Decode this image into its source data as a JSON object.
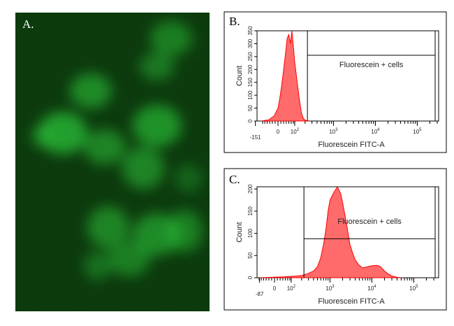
{
  "figure": {
    "panel_a_label": "A.",
    "panel_b_label": "B.",
    "panel_c_label": "C."
  },
  "microscopy": {
    "background_color": "#0f2a10",
    "fluorescence_color": "#33cc44"
  },
  "chart_data": [
    {
      "panel": "B",
      "type": "area",
      "xlabel": "Fluorescein FITC-A",
      "ylabel": "Count",
      "x_scale": "biexponential",
      "xlim": [
        -151,
        262144
      ],
      "ylim": [
        0,
        350
      ],
      "x_tick_labels": [
        {
          "value": -151,
          "label": "-151"
        },
        {
          "value": 0,
          "label": "0"
        },
        {
          "value": 100,
          "label": "10",
          "exp": "2"
        },
        {
          "value": 1000,
          "label": "10",
          "exp": "3"
        },
        {
          "value": 10000,
          "label": "10",
          "exp": "4"
        },
        {
          "value": 100000,
          "label": "10",
          "exp": "5"
        }
      ],
      "y_ticks": [
        0,
        50,
        100,
        150,
        200,
        250,
        300,
        350
      ],
      "gate": {
        "label": "Fluorescein + cells",
        "x_min": 230,
        "count_level": 255
      },
      "fill_color": "#ff6b6b",
      "line_color": "#ff0000",
      "x": [
        -100,
        -50,
        -20,
        0,
        10,
        20,
        30,
        40,
        50,
        60,
        70,
        80,
        90,
        100,
        120,
        140,
        160,
        180,
        200,
        250
      ],
      "values": [
        0,
        5,
        20,
        50,
        90,
        140,
        200,
        260,
        320,
        335,
        300,
        350,
        290,
        230,
        150,
        80,
        30,
        10,
        3,
        0
      ]
    },
    {
      "panel": "C",
      "type": "area",
      "xlabel": "Fluorescein FITC-A",
      "ylabel": "Count",
      "x_scale": "biexponential",
      "xlim": [
        -87,
        262144
      ],
      "ylim": [
        0,
        205
      ],
      "x_tick_labels": [
        {
          "value": -87,
          "label": "-87"
        },
        {
          "value": 0,
          "label": "0"
        },
        {
          "value": 100,
          "label": "10",
          "exp": "2"
        },
        {
          "value": 1000,
          "label": "10",
          "exp": "3"
        },
        {
          "value": 10000,
          "label": "10",
          "exp": "4"
        },
        {
          "value": 100000,
          "label": "10",
          "exp": "5"
        }
      ],
      "y_ticks": [
        0,
        50,
        100,
        150,
        200
      ],
      "gate": {
        "label": "Fluorescein + cells",
        "x_min": 230,
        "count_level": 88
      },
      "fill_color": "#ff6b6b",
      "line_color": "#ff0000",
      "x": [
        -87,
        50,
        150,
        200,
        300,
        400,
        500,
        600,
        700,
        800,
        900,
        1000,
        1200,
        1500,
        1800,
        2000,
        2500,
        3000,
        3500,
        4000,
        5000,
        6000,
        8000,
        10000,
        13000,
        16000,
        20000,
        25000,
        30000,
        40000,
        50000
      ],
      "values": [
        0,
        2,
        4,
        5,
        10,
        15,
        25,
        45,
        75,
        110,
        150,
        175,
        190,
        205,
        190,
        170,
        120,
        75,
        55,
        40,
        28,
        22,
        25,
        27,
        28,
        25,
        15,
        8,
        4,
        1,
        0
      ]
    }
  ]
}
